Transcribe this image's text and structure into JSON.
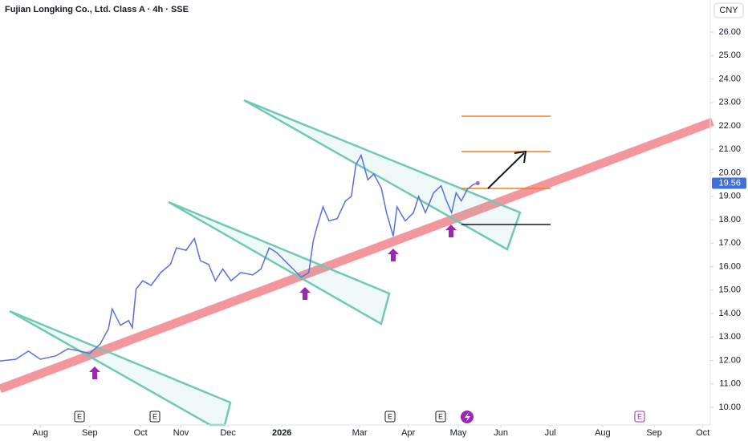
{
  "chart_data": {
    "type": "line",
    "title": "Fujian Longking Co., Ltd. Class A · 4h · SSE",
    "currency": "CNY",
    "series": [
      {
        "name": "Fujian Longking Co., Ltd. Class A",
        "color": "#5a6ee0",
        "x": [
          0,
          2.1,
          3.8,
          5.4,
          7.5,
          9.1,
          10.7,
          12.0,
          13.4,
          14.5,
          15.0,
          16.1,
          17.2,
          17.7,
          18.2,
          19.1,
          20.2,
          21.5,
          22.8,
          23.6,
          24.9,
          26.0,
          26.8,
          27.9,
          28.8,
          29.8,
          30.9,
          32.2,
          33.8,
          34.9,
          36.0,
          37.0,
          38.1,
          39.2,
          40.3,
          41.3,
          41.9,
          42.4,
          43.2,
          44.0,
          45.1,
          46.2,
          47.0,
          47.6,
          48.3,
          49.2,
          50.0,
          51.0,
          51.7,
          52.6,
          53.1,
          54.2,
          55.3,
          56.0,
          56.9,
          58.0,
          59.0,
          59.6,
          60.4,
          61.0,
          61.7,
          62.5,
          63.3,
          63.9
        ],
        "values": [
          11.98,
          12.05,
          12.4,
          12.05,
          12.2,
          12.5,
          12.4,
          12.3,
          12.7,
          13.35,
          14.2,
          13.5,
          13.7,
          13.4,
          15.05,
          15.4,
          15.2,
          15.75,
          16.1,
          16.8,
          16.7,
          17.2,
          16.25,
          16.1,
          15.4,
          15.9,
          15.4,
          15.75,
          15.65,
          15.9,
          16.8,
          16.6,
          16.25,
          15.9,
          15.55,
          15.75,
          17.1,
          17.7,
          18.55,
          17.95,
          18.05,
          18.8,
          19.0,
          20.35,
          20.75,
          19.7,
          19.95,
          19.35,
          18.3,
          17.3,
          18.55,
          17.95,
          18.3,
          19.0,
          18.3,
          19.15,
          19.45,
          18.9,
          18.3,
          19.15,
          18.8,
          19.3,
          19.5,
          19.56
        ]
      }
    ],
    "xlim": [
      0,
      95
    ],
    "xticks": [
      {
        "value": 5.4,
        "label": "Aug"
      },
      {
        "value": 12.0,
        "label": "Sep"
      },
      {
        "value": 18.8,
        "label": "Oct"
      },
      {
        "value": 24.2,
        "label": "Nov"
      },
      {
        "value": 30.5,
        "label": "Dec"
      },
      {
        "value": 37.7,
        "label": "2026"
      },
      {
        "value": 48.1,
        "label": "Mar"
      },
      {
        "value": 54.6,
        "label": "Apr"
      },
      {
        "value": 61.3,
        "label": "May"
      },
      {
        "value": 67.0,
        "label": "Jun"
      },
      {
        "value": 73.6,
        "label": "Jul"
      },
      {
        "value": 80.6,
        "label": "Aug"
      },
      {
        "value": 87.5,
        "label": "Sep"
      },
      {
        "value": 94.0,
        "label": "Oct"
      }
    ],
    "ylim": [
      9.25,
      27.37
    ],
    "yticks": [
      {
        "value": 10,
        "label": "10.00"
      },
      {
        "value": 11,
        "label": "11.00"
      },
      {
        "value": 12,
        "label": "12.00"
      },
      {
        "value": 13,
        "label": "13.00"
      },
      {
        "value": 14,
        "label": "14.00"
      },
      {
        "value": 15,
        "label": "15.00"
      },
      {
        "value": 16,
        "label": "16.00"
      },
      {
        "value": 17,
        "label": "17.00"
      },
      {
        "value": 18,
        "label": "18.00"
      },
      {
        "value": 19,
        "label": "19.00"
      },
      {
        "value": 20,
        "label": "20.00"
      },
      {
        "value": 21,
        "label": "21.00"
      },
      {
        "value": 22,
        "label": "22.00"
      },
      {
        "value": 23,
        "label": "23.00"
      },
      {
        "value": 24,
        "label": "24.00"
      },
      {
        "value": 25,
        "label": "25.00"
      },
      {
        "value": 26,
        "label": "26.00"
      }
    ],
    "events": [
      "E",
      "E",
      "E",
      "E",
      "E"
    ]
  }
}
